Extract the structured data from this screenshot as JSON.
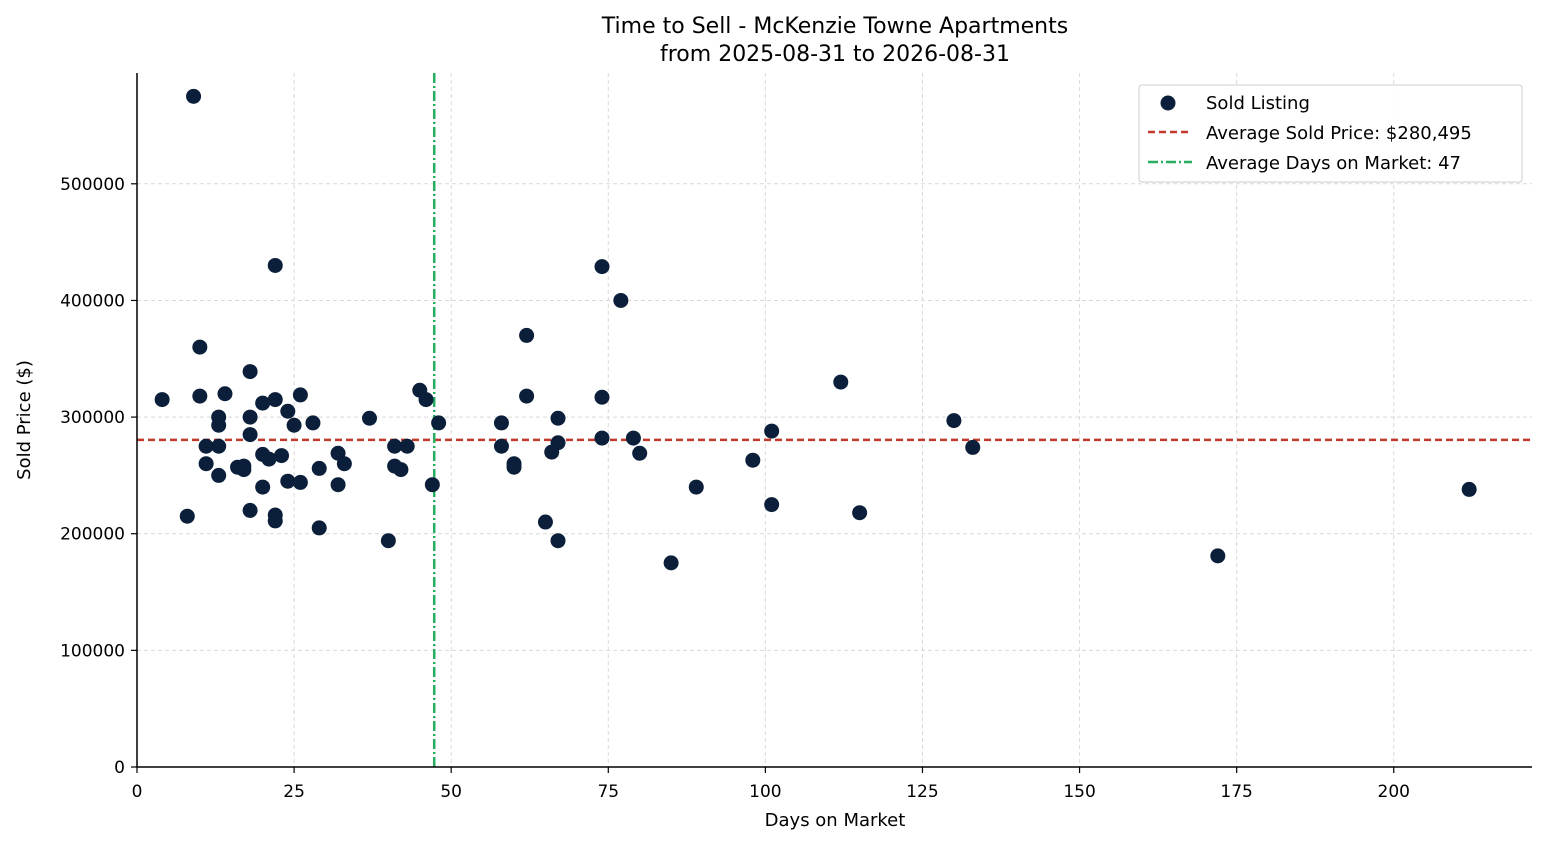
{
  "chart_data": {
    "type": "scatter",
    "title_line1": "Time to Sell - McKenzie Towne Apartments",
    "title_line2": "from 2025-08-31 to 2026-08-31",
    "xlabel": "Days on Market",
    "ylabel": "Sold Price ($)",
    "xlim": [
      0,
      222
    ],
    "ylim": [
      0,
      595000
    ],
    "xticks": [
      0,
      25,
      50,
      75,
      100,
      125,
      150,
      175,
      200
    ],
    "yticks": [
      0,
      100000,
      200000,
      300000,
      400000,
      500000
    ],
    "grid": true,
    "legend_position": "top-right",
    "legend": {
      "sold": "Sold Listing",
      "avg_price": "Average Sold Price: $280,495",
      "avg_days": "Average Days on Market: 47"
    },
    "average_sold_price": 280495,
    "average_days_on_market": 47.3,
    "colors": {
      "points": "#0b1f3a",
      "avg_price": "#c0392b",
      "avg_days": "#27ae60"
    },
    "points": [
      {
        "x": 4,
        "y": 315000
      },
      {
        "x": 8,
        "y": 215000
      },
      {
        "x": 9,
        "y": 575000
      },
      {
        "x": 10,
        "y": 360000
      },
      {
        "x": 10,
        "y": 318000
      },
      {
        "x": 11,
        "y": 275000
      },
      {
        "x": 11,
        "y": 260000
      },
      {
        "x": 13,
        "y": 300000
      },
      {
        "x": 13,
        "y": 293000
      },
      {
        "x": 13,
        "y": 275000
      },
      {
        "x": 13,
        "y": 250000
      },
      {
        "x": 14,
        "y": 320000
      },
      {
        "x": 16,
        "y": 257000
      },
      {
        "x": 17,
        "y": 258000
      },
      {
        "x": 17,
        "y": 255000
      },
      {
        "x": 18,
        "y": 339000
      },
      {
        "x": 18,
        "y": 300000
      },
      {
        "x": 18,
        "y": 285000
      },
      {
        "x": 18,
        "y": 220000
      },
      {
        "x": 20,
        "y": 312000
      },
      {
        "x": 20,
        "y": 268000
      },
      {
        "x": 20,
        "y": 240000
      },
      {
        "x": 21,
        "y": 264000
      },
      {
        "x": 22,
        "y": 430000
      },
      {
        "x": 22,
        "y": 315000
      },
      {
        "x": 22,
        "y": 216000
      },
      {
        "x": 22,
        "y": 211000
      },
      {
        "x": 23,
        "y": 267000
      },
      {
        "x": 24,
        "y": 305000
      },
      {
        "x": 24,
        "y": 245000
      },
      {
        "x": 25,
        "y": 293000
      },
      {
        "x": 26,
        "y": 319000
      },
      {
        "x": 26,
        "y": 244000
      },
      {
        "x": 28,
        "y": 295000
      },
      {
        "x": 29,
        "y": 256000
      },
      {
        "x": 29,
        "y": 205000
      },
      {
        "x": 32,
        "y": 269000
      },
      {
        "x": 32,
        "y": 242000
      },
      {
        "x": 33,
        "y": 260000
      },
      {
        "x": 37,
        "y": 299000
      },
      {
        "x": 40,
        "y": 194000
      },
      {
        "x": 41,
        "y": 275000
      },
      {
        "x": 41,
        "y": 258000
      },
      {
        "x": 42,
        "y": 255000
      },
      {
        "x": 43,
        "y": 275000
      },
      {
        "x": 45,
        "y": 323000
      },
      {
        "x": 46,
        "y": 315000
      },
      {
        "x": 47,
        "y": 242000
      },
      {
        "x": 48,
        "y": 295000
      },
      {
        "x": 58,
        "y": 295000
      },
      {
        "x": 58,
        "y": 275000
      },
      {
        "x": 60,
        "y": 260000
      },
      {
        "x": 60,
        "y": 257000
      },
      {
        "x": 62,
        "y": 370000
      },
      {
        "x": 62,
        "y": 318000
      },
      {
        "x": 65,
        "y": 210000
      },
      {
        "x": 66,
        "y": 270000
      },
      {
        "x": 67,
        "y": 299000
      },
      {
        "x": 67,
        "y": 278000
      },
      {
        "x": 67,
        "y": 194000
      },
      {
        "x": 74,
        "y": 429000
      },
      {
        "x": 74,
        "y": 317000
      },
      {
        "x": 74,
        "y": 282000
      },
      {
        "x": 77,
        "y": 400000
      },
      {
        "x": 79,
        "y": 282000
      },
      {
        "x": 80,
        "y": 269000
      },
      {
        "x": 85,
        "y": 175000
      },
      {
        "x": 89,
        "y": 240000
      },
      {
        "x": 98,
        "y": 263000
      },
      {
        "x": 101,
        "y": 288000
      },
      {
        "x": 101,
        "y": 225000
      },
      {
        "x": 112,
        "y": 330000
      },
      {
        "x": 115,
        "y": 218000
      },
      {
        "x": 130,
        "y": 297000
      },
      {
        "x": 133,
        "y": 274000
      },
      {
        "x": 172,
        "y": 181000
      },
      {
        "x": 212,
        "y": 238000
      }
    ]
  }
}
